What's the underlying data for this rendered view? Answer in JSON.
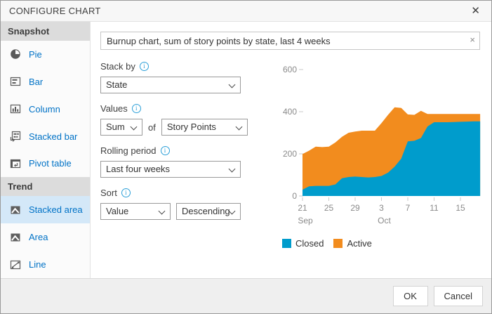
{
  "dialog": {
    "title": "CONFIGURE CHART",
    "close_icon": "✕"
  },
  "sidebar": {
    "sections": [
      {
        "header": "Snapshot",
        "items": [
          {
            "label": "Pie"
          },
          {
            "label": "Bar"
          },
          {
            "label": "Column"
          },
          {
            "label": "Stacked bar"
          },
          {
            "label": "Pivot table"
          }
        ]
      },
      {
        "header": "Trend",
        "items": [
          {
            "label": "Stacked area",
            "selected": true
          },
          {
            "label": "Area"
          },
          {
            "label": "Line"
          }
        ]
      }
    ]
  },
  "form": {
    "name_value": "Burnup chart, sum of story points by state, last 4 weeks",
    "clear_icon": "×",
    "stack_by": {
      "label": "Stack by",
      "value": "State"
    },
    "values": {
      "label": "Values",
      "aggregation": "Sum",
      "of_text": "of",
      "field": "Story Points"
    },
    "rolling_period": {
      "label": "Rolling period",
      "value": "Last four weeks"
    },
    "sort": {
      "label": "Sort",
      "by": "Value",
      "direction": "Descending"
    }
  },
  "footer": {
    "ok_label": "OK",
    "cancel_label": "Cancel"
  },
  "chart_data": {
    "type": "area",
    "stacked": true,
    "title": "",
    "xlabel": "",
    "ylabel": "",
    "ylim": [
      0,
      600
    ],
    "yticks": [
      0,
      200,
      400,
      600
    ],
    "grid": false,
    "legend_position": "bottom",
    "x": [
      "Sep 21",
      "Sep 22",
      "Sep 23",
      "Sep 24",
      "Sep 25",
      "Sep 26",
      "Sep 27",
      "Sep 28",
      "Sep 29",
      "Sep 30",
      "Oct 1",
      "Oct 2",
      "Oct 3",
      "Oct 4",
      "Oct 5",
      "Oct 6",
      "Oct 7",
      "Oct 8",
      "Oct 9",
      "Oct 10",
      "Oct 11",
      "Oct 12",
      "Oct 13",
      "Oct 14",
      "Oct 15",
      "Oct 16",
      "Oct 17",
      "Oct 18"
    ],
    "xticks": [
      {
        "index": 0,
        "label": "21"
      },
      {
        "index": 4,
        "label": "25"
      },
      {
        "index": 8,
        "label": "29"
      },
      {
        "index": 12,
        "label": "3"
      },
      {
        "index": 16,
        "label": "7"
      },
      {
        "index": 20,
        "label": "11"
      },
      {
        "index": 24,
        "label": "15"
      }
    ],
    "month_labels": [
      {
        "index": 0,
        "label": "Sep"
      },
      {
        "index": 12,
        "label": "Oct"
      }
    ],
    "series": [
      {
        "name": "Closed",
        "color": "#009ccc",
        "values": [
          30,
          46,
          48,
          48,
          48,
          55,
          84,
          90,
          92,
          90,
          88,
          90,
          95,
          111,
          139,
          177,
          259,
          262,
          275,
          330,
          350,
          350,
          350,
          351,
          352,
          353,
          354,
          354
        ]
      },
      {
        "name": "Active",
        "color": "#f28c1e",
        "values": [
          169,
          169,
          186,
          184,
          186,
          199,
          197,
          210,
          214,
          220,
          222,
          220,
          251,
          274,
          282,
          241,
          128,
          123,
          129,
          59,
          39,
          39,
          39,
          38,
          37,
          36,
          35,
          35
        ]
      }
    ],
    "legend": [
      {
        "label": "Closed",
        "color": "#009ccc"
      },
      {
        "label": "Active",
        "color": "#f28c1e"
      }
    ]
  }
}
